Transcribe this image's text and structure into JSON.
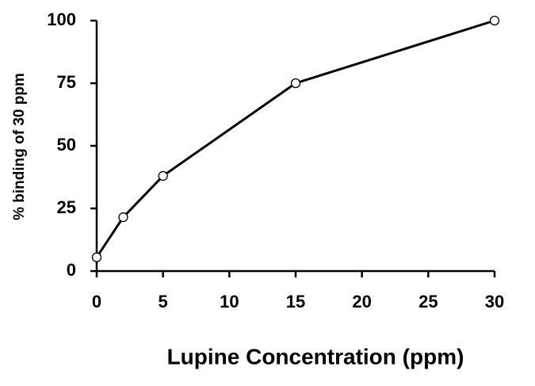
{
  "chart_data": {
    "type": "line",
    "x_label": "Lupine Concentration (ppm)",
    "y_label": "% binding of 30 ppm",
    "x": [
      0,
      2,
      5,
      15,
      30
    ],
    "series": [
      {
        "values": [
          5.5,
          21.5,
          38,
          75,
          100
        ],
        "color": "#000000"
      }
    ],
    "xlim": [
      0,
      30
    ],
    "xticks": [
      0,
      5,
      10,
      15,
      20,
      25,
      30
    ],
    "ylim": [
      0,
      100
    ],
    "yticks": [
      0,
      25,
      50,
      75,
      100
    ],
    "grid": false
  }
}
